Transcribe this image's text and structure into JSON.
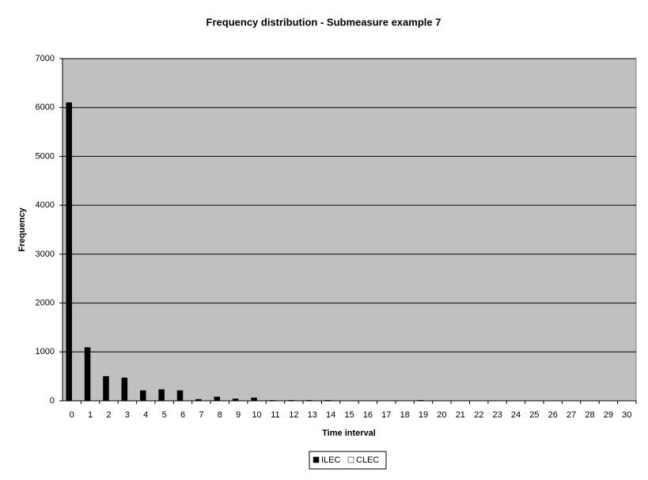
{
  "chart_data": {
    "type": "bar",
    "title": "Frequency distribution - Submeasure example 7",
    "x_label": "Time interval",
    "y_label": "Frequency",
    "categories": [
      "0",
      "1",
      "2",
      "3",
      "4",
      "5",
      "6",
      "7",
      "8",
      "9",
      "10",
      "11",
      "12",
      "13",
      "14",
      "15",
      "16",
      "17",
      "18",
      "19",
      "20",
      "21",
      "22",
      "23",
      "24",
      "25",
      "26",
      "27",
      "28",
      "29",
      "30"
    ],
    "series": [
      {
        "name": "ILEC",
        "color": "#000000",
        "values": [
          6100,
          1090,
          500,
          470,
          210,
          230,
          210,
          30,
          80,
          40,
          60,
          10,
          10,
          10,
          10,
          0,
          0,
          0,
          0,
          10,
          0,
          0,
          0,
          0,
          0,
          0,
          0,
          0,
          0,
          0,
          0
        ]
      },
      {
        "name": "CLEC",
        "color": "#ffffff",
        "values": [
          0,
          0,
          0,
          0,
          0,
          0,
          0,
          0,
          0,
          0,
          0,
          0,
          0,
          0,
          0,
          0,
          0,
          0,
          0,
          0,
          0,
          0,
          0,
          0,
          0,
          0,
          0,
          0,
          0,
          0,
          0
        ]
      }
    ],
    "ylim": [
      0,
      7000
    ],
    "yticks": [
      0,
      1000,
      2000,
      3000,
      4000,
      5000,
      6000,
      7000
    ],
    "grid": true,
    "plot_background": "#c0c0c0",
    "legend": "bottom"
  }
}
